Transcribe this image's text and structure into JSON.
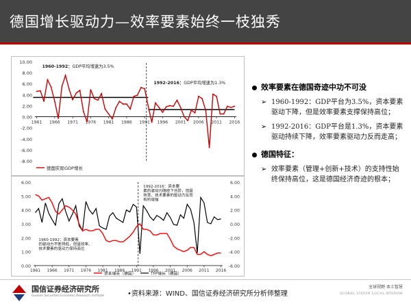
{
  "page": {
    "title": "德国增长驱动力—效率要素始终一枝独秀",
    "source": "•资料来源：WIND、国信证券经济研究所分析师整理",
    "logo_name": "国信证券经济研究所",
    "logo_en": "Guosen Securities Economic Research Institute",
    "slogan_cn": "全球视野  本土智慧",
    "slogan_en": "GLOBAL VISION  LOCAL WISDOM"
  },
  "bullets": [
    {
      "head": "效率要素在德国奇迹中功不可没",
      "items": [
        "1960-1992：GDP平台为3.5%，资本要素驱动下降，但是效率要素支撑保持高位；",
        "1992-2016：GDP平台是1.3%，资本要素驱动持续下降，效率要素驱动力反而走高；"
      ]
    },
    {
      "head": "德国特征：",
      "items": [
        "效率要素（管理+创新+技术）的支持性始终保持高位，这是德国经济奇迹的根本；"
      ]
    }
  ],
  "colors": {
    "banner": "#444444",
    "accent": "#c00000",
    "gdp_line": "#cc0000",
    "capital_line": "#ff0000",
    "tfp_line": "#000000"
  },
  "chart_data": [
    {
      "type": "line",
      "x": [
        1961,
        1962,
        1963,
        1964,
        1965,
        1966,
        1967,
        1968,
        1969,
        1970,
        1971,
        1972,
        1973,
        1974,
        1975,
        1976,
        1977,
        1978,
        1979,
        1980,
        1981,
        1982,
        1983,
        1984,
        1985,
        1986,
        1987,
        1988,
        1989,
        1990,
        1991,
        1992,
        1993,
        1994,
        1995,
        1996,
        1997,
        1998,
        1999,
        2000,
        2001,
        2002,
        2003,
        2004,
        2005,
        2006,
        2007,
        2008,
        2009,
        2010,
        2011,
        2012,
        2013,
        2014,
        2015,
        2016
      ],
      "series": [
        {
          "name": "德国实际GDP增长",
          "values": [
            4.6,
            4.7,
            2.8,
            6.7,
            5.4,
            2.8,
            -0.3,
            5.5,
            7.5,
            5.0,
            3.1,
            4.3,
            4.8,
            0.9,
            -0.9,
            4.9,
            3.3,
            3.0,
            4.2,
            1.4,
            0.5,
            -0.4,
            1.6,
            2.8,
            2.3,
            2.3,
            1.4,
            3.7,
            3.9,
            5.3,
            5.1,
            1.9,
            -1.0,
            2.5,
            1.7,
            0.8,
            1.8,
            2.0,
            1.9,
            3.0,
            1.7,
            0.0,
            -0.7,
            1.2,
            0.7,
            3.7,
            3.3,
            1.1,
            -5.6,
            4.1,
            3.7,
            0.5,
            0.5,
            1.9,
            1.7,
            1.9
          ]
        }
      ],
      "reference_lines": [
        {
          "from": 1960,
          "to": 1992,
          "value": 3.5,
          "label": "1960-1992：GDP平均增速为3.5%"
        },
        {
          "from": 1992,
          "to": 2016,
          "value": 1.3,
          "label": "1992-2016：GDP平均增速为1.3%"
        }
      ],
      "divider_x": 1991.5,
      "ylim": [
        -8,
        10
      ],
      "yticks": [
        "10.00",
        "8.00",
        "6.00",
        "4.00",
        "2.00",
        "0.00",
        "-2.00",
        "-4.00",
        "-6.00",
        "-8.00"
      ],
      "xticks": [
        1961,
        1966,
        1971,
        1976,
        1981,
        1986,
        1991,
        1996,
        2001,
        2006,
        2011,
        2016
      ],
      "legend": "bottom-left"
    },
    {
      "type": "line",
      "x": [
        1961,
        1962,
        1963,
        1964,
        1965,
        1966,
        1967,
        1968,
        1969,
        1970,
        1971,
        1972,
        1973,
        1974,
        1975,
        1976,
        1977,
        1978,
        1979,
        1980,
        1981,
        1982,
        1983,
        1984,
        1985,
        1986,
        1987,
        1988,
        1989,
        1990,
        1991,
        1992,
        1993,
        1994,
        1995,
        1996,
        1997,
        1998,
        1999,
        2000,
        2001,
        2002,
        2003,
        2004,
        2005,
        2006,
        2007,
        2008,
        2009,
        2010,
        2011,
        2012,
        2013,
        2014,
        2015,
        2016
      ],
      "series": [
        {
          "name": "资本增长（德国）",
          "axis": "left",
          "values": [
            5.1,
            5.0,
            4.7,
            4.8,
            4.9,
            4.5,
            3.9,
            3.7,
            4.0,
            4.3,
            4.2,
            4.0,
            3.7,
            3.0,
            2.5,
            2.6,
            2.5,
            2.5,
            2.6,
            2.6,
            2.3,
            1.8,
            1.7,
            1.8,
            1.8,
            1.7,
            1.7,
            1.9,
            2.1,
            2.4,
            2.8,
            3.0,
            2.6,
            2.6,
            2.5,
            2.2,
            2.2,
            2.3,
            2.3,
            2.3,
            1.9,
            1.4,
            1.2,
            1.1,
            1.0,
            1.1,
            1.3,
            1.3,
            0.8,
            0.8,
            1.0,
            0.8,
            0.7,
            0.8,
            0.9,
            0.9
          ]
        },
        {
          "name": "TFP增长（德国）",
          "axis": "right",
          "values": [
            1.6,
            2.2,
            0.2,
            3.0,
            1.5,
            0.6,
            -0.2,
            2.9,
            3.6,
            1.8,
            0.4,
            1.4,
            2.6,
            -0.3,
            -1.0,
            3.2,
            2.0,
            1.4,
            2.2,
            -0.3,
            -0.6,
            -0.8,
            1.1,
            1.6,
            0.8,
            0.5,
            0.2,
            2.0,
            1.7,
            2.8,
            2.4,
            -4.3,
            2.6,
            1.9,
            1.0,
            0.5,
            1.2,
            0.9,
            0.5,
            1.6,
            0.9,
            -0.1,
            -0.2,
            1.3,
            0.8,
            2.8,
            2.1,
            0.2,
            -4.2,
            3.8,
            3.0,
            0.2,
            0.0,
            1.0,
            0.6,
            0.7
          ]
        }
      ],
      "annotations": [
        "1992-2016：资本要素的驱动力随经下台阶，但是效率、技术要素的驱动力反而有所增强",
        "1960-1992：资本要素的驱动力不断持低，但是效率、技术要素的驱动力保持高位"
      ],
      "divider_x": 1991.5,
      "ylim_left": [
        0,
        6
      ],
      "ylim_right": [
        -6,
        6
      ],
      "yticks_left": [
        "6.00",
        "5.00",
        "4.00",
        "3.00",
        "2.00",
        "1.00",
        "0.00"
      ],
      "yticks_right": [
        "6.00",
        "4.00",
        "2.00",
        "0.00",
        "-2.00",
        "-4.00",
        "-6.00"
      ],
      "xticks": [
        1961,
        1966,
        1971,
        1976,
        1981,
        1986,
        1991,
        1996,
        2001,
        2006,
        2011,
        2016
      ],
      "legend": "bottom-center"
    }
  ]
}
